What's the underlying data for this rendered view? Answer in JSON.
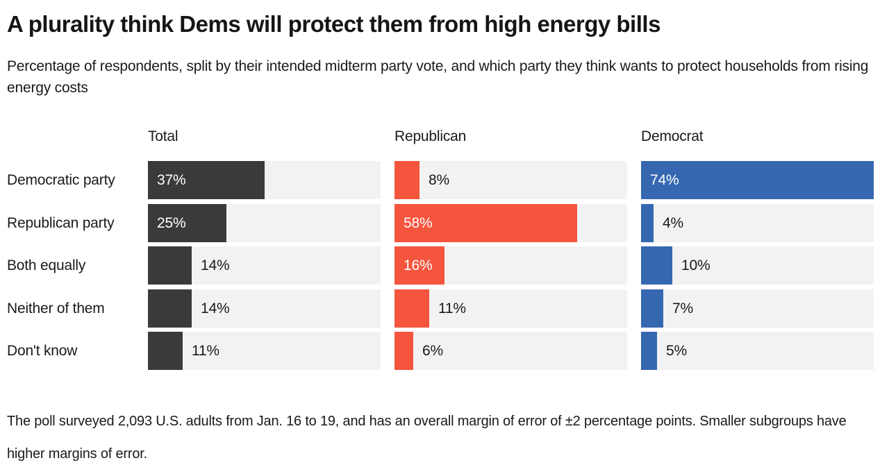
{
  "header": {
    "title": "A plurality think Dems will protect them from high energy bills",
    "subtitle": "Percentage of respondents, split by their intended midterm party vote, and which party they think wants to protect households from rising energy costs"
  },
  "chart_data": {
    "type": "bar",
    "orientation": "horizontal",
    "categories": [
      "Democratic party",
      "Republican party",
      "Both equally",
      "Neither of them",
      "Don't know"
    ],
    "series": [
      {
        "name": "Total",
        "color": "#3a3a3a",
        "values": [
          37,
          25,
          14,
          14,
          11
        ]
      },
      {
        "name": "Republican",
        "color": "#f5543d",
        "values": [
          8,
          58,
          16,
          11,
          6
        ]
      },
      {
        "name": "Democrat",
        "color": "#3667b1",
        "values": [
          74,
          4,
          10,
          7,
          5
        ]
      }
    ],
    "value_suffix": "%",
    "xmax": 74,
    "track_color": "#f2f2f2",
    "inside_label_min_value": 16,
    "inside_label_color": "#ffffff",
    "outside_label_color": "#1a1a1a",
    "legend_position": "column-headers",
    "grid": false
  },
  "footer": {
    "note": "The poll surveyed 2,093 U.S. adults from Jan. 16 to 19, and has an overall margin of error of ±2 percentage points. Smaller subgroups have higher margins of error."
  }
}
